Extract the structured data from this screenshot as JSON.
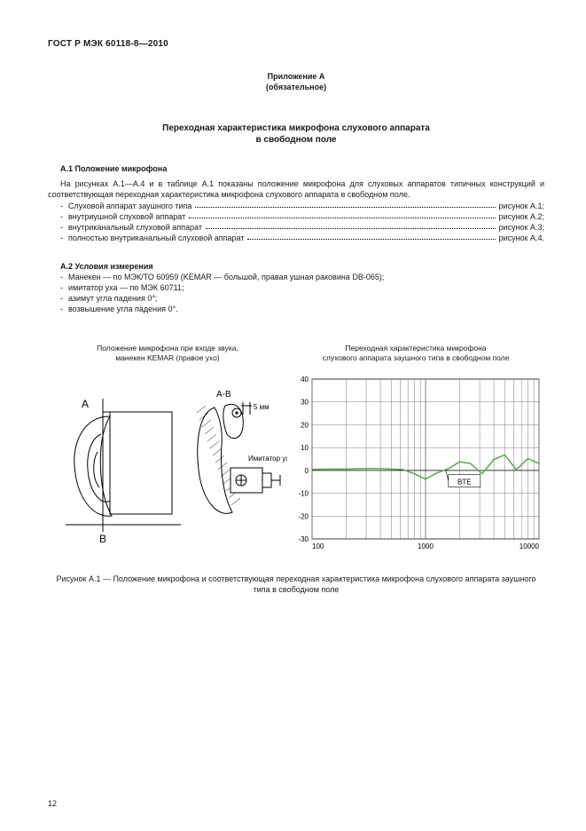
{
  "header": "ГОСТ Р МЭК 60118-8—2010",
  "annex_line1": "Приложение А",
  "annex_line2": "(обязательное)",
  "title_line1": "Переходная характеристика микрофона слухового аппарата",
  "title_line2": "в свободном поле",
  "section_a1": "А.1  Положение микрофона",
  "para_a1": "На рисунках А.1—А.4 и в таблице А.1 показаны положение микрофона для слуховых аппаратов типичных конструкций и соответствующая переходная характеристика микрофона слухового аппарата в свободном поле.",
  "items": [
    {
      "dash": "-",
      "label": "Слуховой аппарат заушного типа",
      "ref": "рисунок А.1;"
    },
    {
      "dash": "-",
      "label": "внутриушной слуховой аппарат",
      "ref": "рисунок А.2;"
    },
    {
      "dash": "-",
      "label": "внутриканальный слуховой аппарат",
      "ref": "рисунок А.3;"
    },
    {
      "dash": "-",
      "label": "полностью внутриканальный слуховой аппарат",
      "ref": "рисунок А.4."
    }
  ],
  "section_a2": "А.2  Условия измерения",
  "conds": [
    {
      "dash": "-",
      "text": "Манекен — по МЭК/ТО 60959 (KEMAR — большой, правая ушная раковина DB-065);"
    },
    {
      "dash": "-",
      "text": "имитатор уха — по МЭК 60711;"
    },
    {
      "dash": "-",
      "text": "азимут угла падения 0°;"
    },
    {
      "dash": "-",
      "text": "возвышение угла падения 0°."
    }
  ],
  "figL_cap1": "Положение микрофона при входе звука,",
  "figL_cap2": "манекен KEMAR (правое ухо)",
  "figR_cap1": "Переходная характеристика микрофона",
  "figR_cap2": "слухового аппарата заушного типа в свободном поле",
  "figL": {
    "label_A": "A",
    "label_B": "B",
    "label_AB": "A-B",
    "label_5mm": "5 мм",
    "label_ear": "Имитатор уха"
  },
  "chart": {
    "ylim": [
      -30,
      40
    ],
    "yticks": [
      -30,
      -20,
      -10,
      0,
      10,
      20,
      30,
      40
    ],
    "xlim": [
      100,
      10000
    ],
    "xticks": [
      100,
      1000,
      10000
    ],
    "xticklabels": [
      "100",
      "1000",
      "10000"
    ],
    "grid_color": "#7a7a7a",
    "bg": "#ffffff",
    "axis_color": "#000000",
    "line_color": "#5aa84f",
    "label_box": "BTE",
    "series": [
      [
        100,
        0.5
      ],
      [
        150,
        0.6
      ],
      [
        200,
        0.6
      ],
      [
        300,
        0.8
      ],
      [
        400,
        0.8
      ],
      [
        500,
        0.6
      ],
      [
        630,
        0.4
      ],
      [
        800,
        -1.5
      ],
      [
        1000,
        -3.8
      ],
      [
        1250,
        -1.2
      ],
      [
        1600,
        0.8
      ],
      [
        2000,
        3.8
      ],
      [
        2500,
        3.0
      ],
      [
        3150,
        -1.5
      ],
      [
        4000,
        4.8
      ],
      [
        5000,
        6.8
      ],
      [
        6300,
        0.3
      ],
      [
        8000,
        5.2
      ],
      [
        10000,
        3.0
      ]
    ],
    "font_size": 8
  },
  "main_caption": "Рисунок  А.1 — Положение микрофона и соответствующая переходная характеристика микрофона слухового аппарата заушного типа в свободном поле",
  "page_number": "12"
}
